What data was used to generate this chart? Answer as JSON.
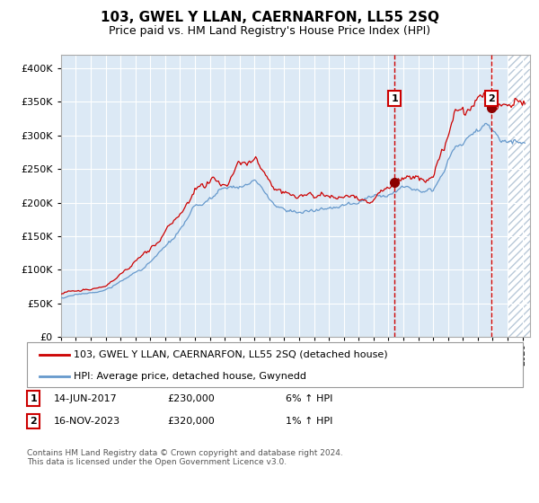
{
  "title": "103, GWEL Y LLAN, CAERNARFON, LL55 2SQ",
  "subtitle": "Price paid vs. HM Land Registry's House Price Index (HPI)",
  "legend_label_red": "103, GWEL Y LLAN, CAERNARFON, LL55 2SQ (detached house)",
  "legend_label_blue": "HPI: Average price, detached house, Gwynedd",
  "annotation1_date": "14-JUN-2017",
  "annotation1_price": "£230,000",
  "annotation1_hpi": "6% ↑ HPI",
  "annotation1_year": 2017.45,
  "annotation2_date": "16-NOV-2023",
  "annotation2_price": "£320,000",
  "annotation2_hpi": "1% ↑ HPI",
  "annotation2_year": 2023.88,
  "footer": "Contains HM Land Registry data © Crown copyright and database right 2024.\nThis data is licensed under the Open Government Licence v3.0.",
  "bg_color": "#ffffff",
  "plot_bg_color": "#dce9f5",
  "hatch_color": "#b8c8d8",
  "grid_color": "#ffffff",
  "red_line_color": "#cc0000",
  "blue_line_color": "#6699cc",
  "dot_color": "#8b0000",
  "dashed_line_color": "#cc0000",
  "ylim": [
    0,
    420000
  ],
  "xlim_start": 1995.0,
  "xlim_end": 2026.5,
  "future_shade_start": 2025.0
}
